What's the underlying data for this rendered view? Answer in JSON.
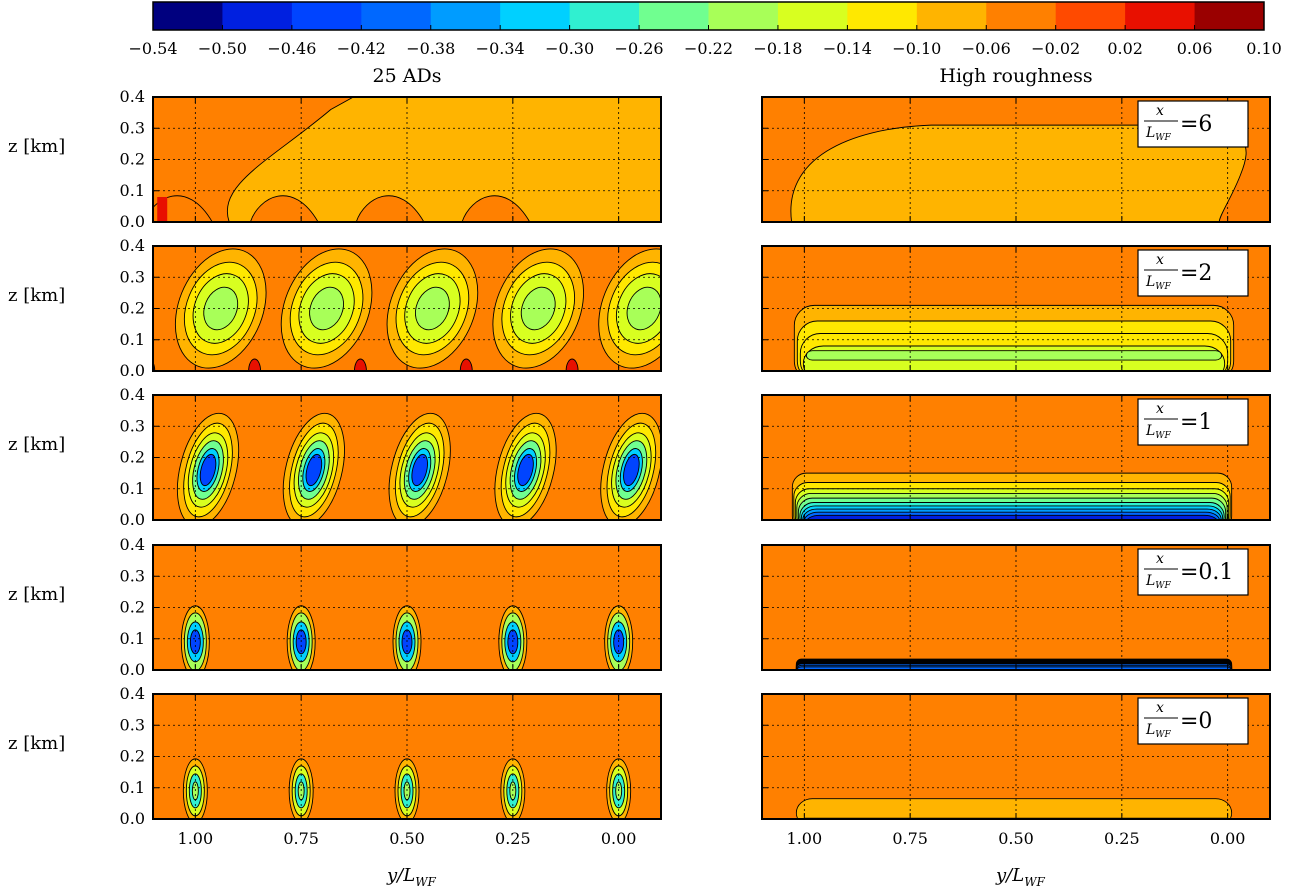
{
  "colorbar": {
    "tick_labels": [
      "−0.54",
      "−0.50",
      "−0.46",
      "−0.42",
      "−0.38",
      "−0.34",
      "−0.30",
      "−0.26",
      "−0.22",
      "−0.18",
      "−0.14",
      "−0.10",
      "−0.06",
      "−0.02",
      "0.02",
      "0.06",
      "0.10"
    ],
    "colors": [
      "#00007f",
      "#0020e0",
      "#0044ff",
      "#0068ff",
      "#009cff",
      "#00d0ff",
      "#30f0d0",
      "#70ff90",
      "#a8ff58",
      "#d8ff20",
      "#ffe800",
      "#ffb400",
      "#ff8000",
      "#ff4a00",
      "#e81000",
      "#9a0000"
    ]
  },
  "chart_data": {
    "type": "heatmap",
    "columns": [
      {
        "title": "25 ADs"
      },
      {
        "title": "High roughness"
      }
    ],
    "rows": [
      {
        "x_ratio_label": "6"
      },
      {
        "x_ratio_label": "2"
      },
      {
        "x_ratio_label": "1"
      },
      {
        "x_ratio_label": "0.1"
      },
      {
        "x_ratio_label": "0"
      }
    ],
    "ylabel": "z [km]",
    "xlabel": "y/L_WF",
    "y_ticks": [
      "0.0",
      "0.1",
      "0.2",
      "0.3",
      "0.4"
    ],
    "y_values": [
      0.0,
      0.1,
      0.2,
      0.3,
      0.4
    ],
    "x_ticks": [
      "1.00",
      "0.75",
      "0.50",
      "0.25",
      "0.00"
    ],
    "x_values": [
      1.0,
      0.75,
      0.5,
      0.25,
      0.0
    ],
    "xlim": [
      1.1,
      -0.1
    ],
    "ylim": [
      0.0,
      0.4
    ],
    "turbine_positions": [
      1.0,
      0.75,
      0.5,
      0.25,
      0.0
    ],
    "levels": [
      -0.54,
      -0.5,
      -0.46,
      -0.42,
      -0.38,
      -0.34,
      -0.3,
      -0.26,
      -0.22,
      -0.18,
      -0.14,
      -0.1,
      -0.06,
      -0.02,
      0.02,
      0.06,
      0.1
    ],
    "background_value": -0.04,
    "grid": true,
    "inset_label_prefix": "x / L_WF ="
  },
  "labels": {
    "ylabel_text": "z [km]",
    "xlabel_main": "y/L",
    "xlabel_sub": "WF",
    "legend_num": "x",
    "legend_den_main": "L",
    "legend_den_sub": "WF"
  }
}
